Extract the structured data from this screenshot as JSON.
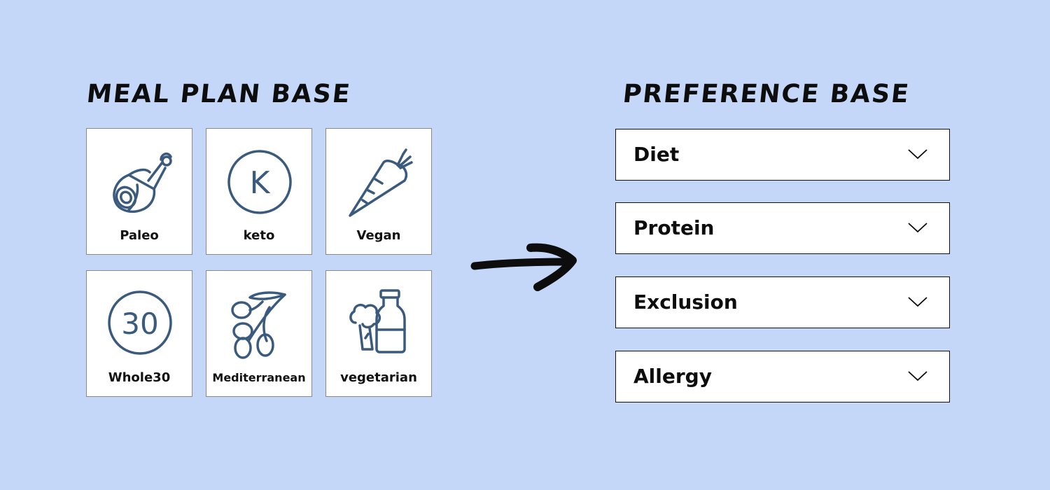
{
  "meal_plan": {
    "title": "MEAL PLAN BASE",
    "cards": [
      {
        "label": "Paleo",
        "icon": "ham-leg-icon"
      },
      {
        "label": "keto",
        "icon": "keto-k-circle-icon",
        "glyph": "K"
      },
      {
        "label": "Vegan",
        "icon": "carrot-icon"
      },
      {
        "label": "Whole30",
        "icon": "whole30-circle-icon",
        "glyph": "30"
      },
      {
        "label": "Mediterranean",
        "icon": "olive-branch-icon"
      },
      {
        "label": "vegetarian",
        "icon": "broccoli-milk-icon"
      }
    ]
  },
  "preference": {
    "title": "PREFERENCE BASE",
    "dropdowns": [
      {
        "label": "Diet"
      },
      {
        "label": "Protein"
      },
      {
        "label": "Exclusion"
      },
      {
        "label": "Allergy"
      }
    ]
  },
  "colors": {
    "background": "#c5d7f8",
    "icon_stroke": "#3a5a7e",
    "text": "#0d0d0d",
    "card_bg": "#ffffff"
  }
}
